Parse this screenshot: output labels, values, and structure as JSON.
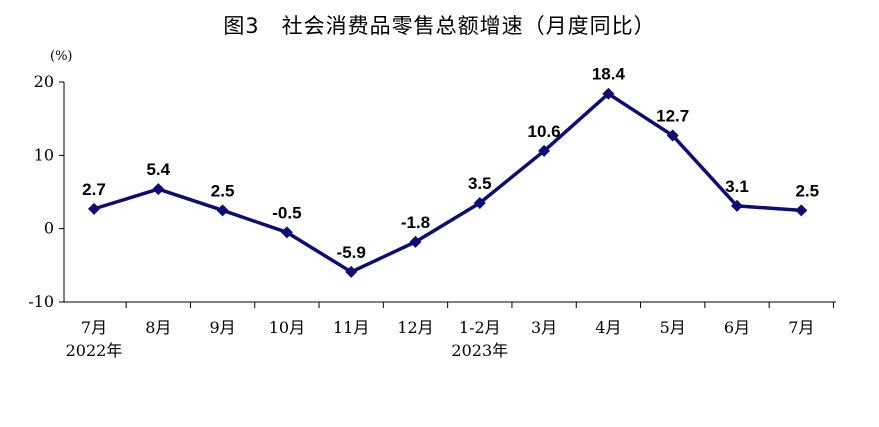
{
  "chart_data": {
    "type": "line",
    "title": "图3　社会消费品零售总额增速（月度同比）",
    "ylabel": "(%)",
    "ylim": [
      -10,
      20
    ],
    "yticks": [
      -10,
      0,
      10,
      20
    ],
    "categories": [
      "7月",
      "8月",
      "9月",
      "10月",
      "11月",
      "12月",
      "1-2月",
      "3月",
      "4月",
      "5月",
      "6月",
      "7月"
    ],
    "category_sublabels": [
      "2022年",
      "",
      "",
      "",
      "",
      "",
      "2023年",
      "",
      "",
      "",
      "",
      ""
    ],
    "series": [
      {
        "values": [
          2.7,
          5.4,
          2.5,
          -0.5,
          -5.9,
          -1.8,
          3.5,
          10.6,
          18.4,
          12.7,
          3.1,
          2.5
        ],
        "labels": [
          "2.7",
          "5.4",
          "2.5",
          "-0.5",
          "-5.9",
          "-1.8",
          "3.5",
          "10.6",
          "18.4",
          "12.7",
          "3.1",
          "2.5"
        ],
        "color": "#0d0d73"
      }
    ],
    "grid": false,
    "marker": "diamond"
  }
}
